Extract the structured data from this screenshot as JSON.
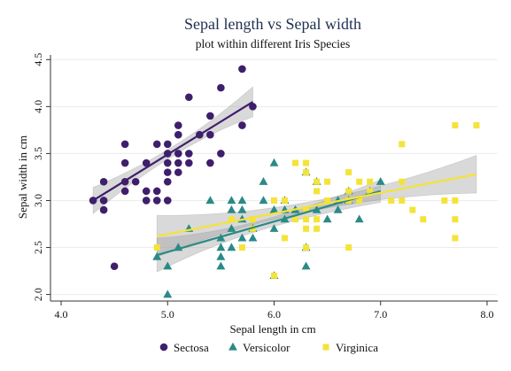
{
  "chart_data": {
    "type": "scatter",
    "title": "Sepal length vs Sepal width",
    "subtitle": "plot within different Iris Species",
    "xlabel": "Sepal length in cm",
    "ylabel": "Sepal width in cm",
    "xlim": [
      3.9,
      8.1
    ],
    "ylim": [
      1.93,
      4.55
    ],
    "xticks": [
      4.0,
      5.0,
      6.0,
      7.0,
      8.0
    ],
    "xtick_labels": [
      "4.0",
      "5.0",
      "6.0",
      "7.0",
      "8.0"
    ],
    "yticks": [
      2.0,
      2.5,
      3.0,
      3.5,
      4.0,
      4.5
    ],
    "ytick_labels": [
      "2.0",
      "2.5",
      "3.0",
      "3.5",
      "4.0",
      "4.5"
    ],
    "grid": true,
    "legend_position": "bottom",
    "series": [
      {
        "name": "Sectosa",
        "marker": "circle",
        "color": "#3e1f6b",
        "fit": {
          "x": [
            4.3,
            5.8
          ],
          "y": [
            3.0,
            4.05
          ],
          "ci_width_left": 0.14,
          "ci_width_mid": 0.05,
          "ci_width_right": 0.16
        },
        "points": [
          [
            4.3,
            3.0
          ],
          [
            4.4,
            2.9
          ],
          [
            4.4,
            3.0
          ],
          [
            4.4,
            3.2
          ],
          [
            4.5,
            2.3
          ],
          [
            4.6,
            3.1
          ],
          [
            4.6,
            3.2
          ],
          [
            4.6,
            3.4
          ],
          [
            4.6,
            3.6
          ],
          [
            4.7,
            3.2
          ],
          [
            4.8,
            3.0
          ],
          [
            4.8,
            3.1
          ],
          [
            4.8,
            3.4
          ],
          [
            4.9,
            3.0
          ],
          [
            4.9,
            3.1
          ],
          [
            4.9,
            3.6
          ],
          [
            5.0,
            3.0
          ],
          [
            5.0,
            3.2
          ],
          [
            5.0,
            3.3
          ],
          [
            5.0,
            3.4
          ],
          [
            5.0,
            3.5
          ],
          [
            5.0,
            3.6
          ],
          [
            5.1,
            3.3
          ],
          [
            5.1,
            3.4
          ],
          [
            5.1,
            3.5
          ],
          [
            5.1,
            3.7
          ],
          [
            5.1,
            3.8
          ],
          [
            5.2,
            3.4
          ],
          [
            5.2,
            3.5
          ],
          [
            5.2,
            4.1
          ],
          [
            5.3,
            3.7
          ],
          [
            5.4,
            3.4
          ],
          [
            5.4,
            3.7
          ],
          [
            5.4,
            3.9
          ],
          [
            5.5,
            3.5
          ],
          [
            5.5,
            4.2
          ],
          [
            5.7,
            3.8
          ],
          [
            5.7,
            4.4
          ],
          [
            5.8,
            4.0
          ]
        ]
      },
      {
        "name": "Versicolor",
        "marker": "triangle",
        "color": "#2a8a86",
        "fit": {
          "x": [
            4.9,
            7.0
          ],
          "y": [
            2.42,
            3.1
          ],
          "ci_width_left": 0.18,
          "ci_width_mid": 0.05,
          "ci_width_right": 0.12
        },
        "points": [
          [
            4.9,
            2.4
          ],
          [
            5.0,
            2.0
          ],
          [
            5.0,
            2.3
          ],
          [
            5.1,
            2.5
          ],
          [
            5.2,
            2.7
          ],
          [
            5.4,
            3.0
          ],
          [
            5.5,
            2.3
          ],
          [
            5.5,
            2.4
          ],
          [
            5.5,
            2.5
          ],
          [
            5.5,
            2.6
          ],
          [
            5.6,
            2.5
          ],
          [
            5.6,
            2.7
          ],
          [
            5.6,
            2.9
          ],
          [
            5.6,
            3.0
          ],
          [
            5.7,
            2.6
          ],
          [
            5.7,
            2.8
          ],
          [
            5.7,
            2.9
          ],
          [
            5.7,
            3.0
          ],
          [
            5.8,
            2.6
          ],
          [
            5.8,
            2.7
          ],
          [
            5.9,
            3.0
          ],
          [
            5.9,
            3.2
          ],
          [
            6.0,
            2.2
          ],
          [
            6.0,
            2.7
          ],
          [
            6.0,
            2.9
          ],
          [
            6.0,
            3.4
          ],
          [
            6.1,
            2.8
          ],
          [
            6.1,
            2.9
          ],
          [
            6.1,
            3.0
          ],
          [
            6.2,
            2.9
          ],
          [
            6.3,
            2.3
          ],
          [
            6.3,
            2.5
          ],
          [
            6.3,
            3.3
          ],
          [
            6.4,
            2.9
          ],
          [
            6.4,
            3.2
          ],
          [
            6.5,
            2.8
          ],
          [
            6.6,
            2.9
          ],
          [
            6.6,
            3.0
          ],
          [
            6.7,
            3.0
          ],
          [
            6.7,
            3.1
          ],
          [
            6.8,
            2.8
          ],
          [
            6.9,
            3.1
          ],
          [
            7.0,
            3.2
          ]
        ]
      },
      {
        "name": "Virginica",
        "marker": "square",
        "color": "#f4e338",
        "fit": {
          "x": [
            4.9,
            7.9
          ],
          "y": [
            2.62,
            3.28
          ],
          "ci_width_left": 0.22,
          "ci_width_mid": 0.05,
          "ci_width_right": 0.2
        },
        "points": [
          [
            4.9,
            2.5
          ],
          [
            5.6,
            2.8
          ],
          [
            5.7,
            2.5
          ],
          [
            5.8,
            2.7
          ],
          [
            5.8,
            2.8
          ],
          [
            6.0,
            2.2
          ],
          [
            6.0,
            3.0
          ],
          [
            6.1,
            2.6
          ],
          [
            6.1,
            3.0
          ],
          [
            6.2,
            2.8
          ],
          [
            6.2,
            3.4
          ],
          [
            6.3,
            2.5
          ],
          [
            6.3,
            2.7
          ],
          [
            6.3,
            2.8
          ],
          [
            6.3,
            2.9
          ],
          [
            6.3,
            3.3
          ],
          [
            6.3,
            3.4
          ],
          [
            6.4,
            2.7
          ],
          [
            6.4,
            2.8
          ],
          [
            6.4,
            3.1
          ],
          [
            6.4,
            3.2
          ],
          [
            6.5,
            3.0
          ],
          [
            6.5,
            3.2
          ],
          [
            6.7,
            2.5
          ],
          [
            6.7,
            3.0
          ],
          [
            6.7,
            3.1
          ],
          [
            6.7,
            3.3
          ],
          [
            6.8,
            3.0
          ],
          [
            6.8,
            3.2
          ],
          [
            6.9,
            3.1
          ],
          [
            6.9,
            3.2
          ],
          [
            7.1,
            3.0
          ],
          [
            7.2,
            3.0
          ],
          [
            7.2,
            3.2
          ],
          [
            7.2,
            3.6
          ],
          [
            7.3,
            2.9
          ],
          [
            7.4,
            2.8
          ],
          [
            7.6,
            3.0
          ],
          [
            7.7,
            2.6
          ],
          [
            7.7,
            2.8
          ],
          [
            7.7,
            3.0
          ],
          [
            7.7,
            3.8
          ],
          [
            7.9,
            3.8
          ]
        ]
      }
    ]
  },
  "colors": {
    "background": "#ffffff",
    "grid": "#ececec",
    "axis": "#333333",
    "ci_band": "#9a9a9a"
  }
}
